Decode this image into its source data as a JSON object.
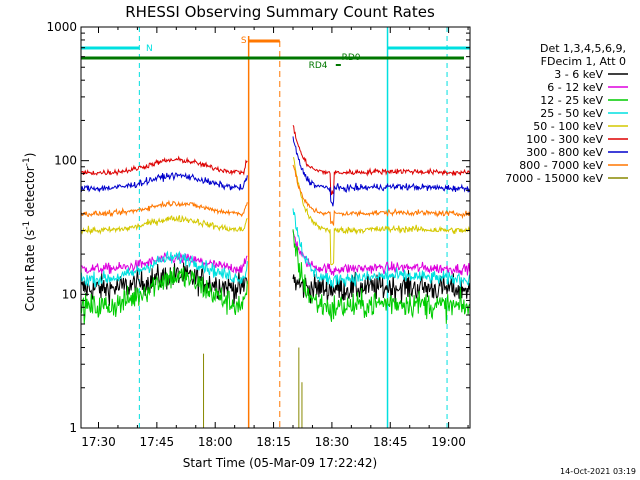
{
  "chart_data": {
    "type": "line",
    "title": "RHESSI Observing Summary Count Rates",
    "xlabel": "Start Time (05-Mar-09 17:22:42)",
    "ylabel_prefix": "Count Rate (s",
    "ylabel_sup1": "-1",
    "ylabel_mid": " detector",
    "ylabel_sup2": "-1",
    "ylabel_suffix": ")",
    "yscale": "log",
    "ylim": [
      1,
      1000
    ],
    "xlim_minutes": [
      -4.5,
      95.5
    ],
    "x_ticks": [
      {
        "t": 0,
        "label": "17:30"
      },
      {
        "t": 15,
        "label": "17:45"
      },
      {
        "t": 30,
        "label": "18:00"
      },
      {
        "t": 45,
        "label": "18:15"
      },
      {
        "t": 60,
        "label": "18:30"
      },
      {
        "t": 75,
        "label": "18:45"
      },
      {
        "t": 90,
        "label": "19:00"
      }
    ],
    "y_ticks": [
      {
        "v": 1,
        "label": "1"
      },
      {
        "v": 10,
        "label": "10"
      },
      {
        "v": 100,
        "label": "100"
      },
      {
        "v": 1000,
        "label": "1000"
      }
    ],
    "legend_header": [
      "Det 1,3,4,5,6,9,",
      "FDecim 1, Att 0"
    ],
    "gaps_minutes": [
      [
        38.5,
        50.0
      ]
    ],
    "series": [
      {
        "name": "3 - 6 keV",
        "color": "#000000",
        "base": 11,
        "hump": 1.25,
        "noise": 0.1,
        "flare_peak": 13,
        "dip": 1.0
      },
      {
        "name": "6 - 12 keV",
        "color": "#dd00dd",
        "base": 15.5,
        "hump": 1.2,
        "noise": 0.04,
        "flare_peak": 30,
        "dip": 0.92
      },
      {
        "name": "12 - 25 keV",
        "color": "#00cc00",
        "base": 8,
        "hump": 1.7,
        "noise": 0.1,
        "flare_peak": 28,
        "dip": 0.9
      },
      {
        "name": "25 - 50 keV",
        "color": "#00e0e0",
        "base": 13,
        "hump": 1.45,
        "noise": 0.05,
        "flare_peak": 45,
        "dip": 0.88
      },
      {
        "name": "50 - 100 keV",
        "color": "#d4c800",
        "base": 30,
        "hump": 1.23,
        "noise": 0.025,
        "flare_peak": 110,
        "dip": 0.55
      },
      {
        "name": "100 - 300 keV",
        "color": "#dd0000",
        "base": 81,
        "hump": 1.25,
        "noise": 0.02,
        "flare_peak": 185,
        "dip": 0.7
      },
      {
        "name": "300 - 800 keV",
        "color": "#0000cc",
        "base": 62,
        "hump": 1.25,
        "noise": 0.025,
        "flare_peak": 150,
        "dip": 0.78
      },
      {
        "name": "800 - 7000 keV",
        "color": "#ff7700",
        "base": 40,
        "hump": 1.2,
        "noise": 0.02,
        "flare_peak": 95,
        "dip": 0.85
      },
      {
        "name": "7000 - 15000 keV",
        "color": "#888800",
        "base": 0,
        "hump": 1,
        "noise": 0,
        "flare_peak": 4,
        "dip": 1.0
      }
    ],
    "annotations": [
      {
        "label": "N",
        "color": "#00e0e0"
      },
      {
        "label": "S",
        "color": "#ff7700"
      },
      {
        "label": "RD0",
        "color": "#007700"
      },
      {
        "label": "RD4",
        "color": "#007700"
      }
    ],
    "timestamp": "14-Oct-2021 03:19"
  }
}
